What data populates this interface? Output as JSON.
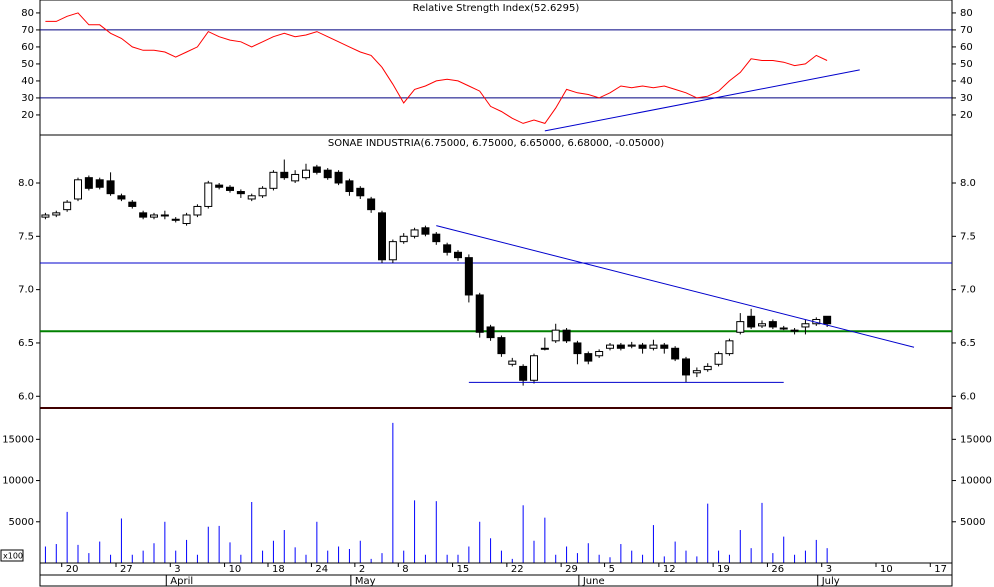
{
  "chart_data": [
    {
      "type": "line",
      "title": "Relative Strength Index(52.6295)",
      "color": "#ff0000",
      "values": [
        75,
        75,
        78,
        80,
        73,
        73,
        68,
        65,
        60,
        58,
        58,
        57,
        54,
        57,
        60,
        69,
        66,
        64,
        63,
        60,
        63,
        66,
        68,
        66,
        67,
        69,
        66,
        63,
        60,
        57,
        55,
        48,
        38,
        27,
        35,
        37,
        40,
        41,
        40,
        37,
        34,
        25,
        22,
        18,
        15,
        17,
        15,
        24,
        35,
        33,
        32,
        30,
        33,
        37,
        36,
        37,
        36,
        37,
        35,
        33,
        30,
        31,
        34,
        40,
        45,
        53,
        52,
        52,
        51,
        49,
        50,
        55,
        52,
        null,
        null,
        null,
        null,
        null,
        null,
        null,
        null,
        null,
        null,
        null
      ],
      "ylim": [
        8.2,
        87.6
      ],
      "yticks": [
        20,
        30,
        40,
        50,
        60,
        70,
        80
      ],
      "hlines": [
        {
          "value": 70,
          "color": "#000080"
        },
        {
          "value": 30,
          "color": "#000080"
        }
      ],
      "lines": [
        {
          "x": [
            46,
            75
          ],
          "y": [
            10.6,
            46.5
          ],
          "color": "#0000cc"
        }
      ]
    },
    {
      "type": "candlestick",
      "title": "SONAE INDUSTRIA(6.75000, 6.75000, 6.65000, 6.68000, -0.05000)",
      "open": [
        7.68,
        7.7,
        7.75,
        7.85,
        8.05,
        8.03,
        8.02,
        7.88,
        7.82,
        7.72,
        7.68,
        7.7,
        7.66,
        7.62,
        7.7,
        7.78,
        7.98,
        7.96,
        7.92,
        7.85,
        7.88,
        7.95,
        8.1,
        8.02,
        8.05,
        8.15,
        8.12,
        8.1,
        8.02,
        7.95,
        7.85,
        7.72,
        7.28,
        7.45,
        7.5,
        7.58,
        7.52,
        7.42,
        7.35,
        7.3,
        6.95,
        6.65,
        6.55,
        6.3,
        6.28,
        6.15,
        6.45,
        6.52,
        6.62,
        6.5,
        6.4,
        6.38,
        6.45,
        6.48,
        6.47,
        6.48,
        6.45,
        6.48,
        6.45,
        6.35,
        6.22,
        6.25,
        6.3,
        6.4,
        6.6,
        6.75,
        6.66,
        6.7,
        6.64,
        6.62,
        6.65,
        6.68,
        6.75,
        null,
        null,
        null,
        null,
        null,
        null,
        null,
        null,
        null,
        null,
        null
      ],
      "high": [
        7.72,
        7.74,
        7.84,
        8.05,
        8.07,
        8.05,
        8.1,
        7.9,
        7.84,
        7.74,
        7.72,
        7.74,
        7.68,
        7.72,
        7.8,
        8.02,
        8.0,
        7.98,
        7.94,
        7.9,
        7.97,
        8.12,
        8.22,
        8.12,
        8.18,
        8.17,
        8.14,
        8.12,
        8.04,
        7.97,
        7.87,
        7.74,
        7.47,
        7.53,
        7.58,
        7.6,
        7.54,
        7.44,
        7.37,
        7.33,
        6.97,
        6.67,
        6.57,
        6.36,
        6.3,
        6.4,
        6.55,
        6.68,
        6.64,
        6.52,
        6.42,
        6.44,
        6.5,
        6.5,
        6.51,
        6.5,
        6.53,
        6.5,
        6.47,
        6.37,
        6.27,
        6.31,
        6.42,
        6.54,
        6.78,
        6.82,
        6.71,
        6.72,
        6.66,
        6.64,
        6.72,
        6.74,
        6.75,
        null,
        null,
        null,
        null,
        null,
        null,
        null,
        null,
        null,
        null,
        null
      ],
      "low": [
        7.66,
        7.68,
        7.73,
        7.83,
        7.93,
        7.94,
        7.88,
        7.83,
        7.76,
        7.66,
        7.66,
        7.66,
        7.63,
        7.6,
        7.68,
        7.76,
        7.94,
        7.91,
        7.86,
        7.83,
        7.86,
        7.93,
        8.03,
        8.0,
        8.03,
        8.08,
        8.03,
        7.98,
        7.88,
        7.85,
        7.72,
        7.25,
        7.25,
        7.43,
        7.48,
        7.5,
        7.42,
        7.32,
        7.27,
        6.88,
        6.55,
        6.52,
        6.37,
        6.28,
        6.1,
        6.12,
        6.43,
        6.5,
        6.5,
        6.3,
        6.3,
        6.36,
        6.43,
        6.43,
        6.45,
        6.4,
        6.43,
        6.4,
        6.33,
        6.13,
        6.18,
        6.23,
        6.28,
        6.38,
        6.58,
        6.63,
        6.64,
        6.63,
        6.62,
        6.58,
        6.58,
        6.66,
        6.65,
        null,
        null,
        null,
        null,
        null,
        null,
        null,
        null,
        null,
        null,
        null
      ],
      "close": [
        7.7,
        7.72,
        7.82,
        8.03,
        7.95,
        7.96,
        7.9,
        7.85,
        7.78,
        7.68,
        7.7,
        7.7,
        7.65,
        7.7,
        7.78,
        8.0,
        7.96,
        7.93,
        7.9,
        7.88,
        7.95,
        8.1,
        8.05,
        8.08,
        8.12,
        8.1,
        8.05,
        8.0,
        7.92,
        7.88,
        7.75,
        7.28,
        7.45,
        7.5,
        7.56,
        7.52,
        7.45,
        7.35,
        7.3,
        6.95,
        6.6,
        6.55,
        6.4,
        6.33,
        6.15,
        6.38,
        6.45,
        6.62,
        6.52,
        6.4,
        6.33,
        6.42,
        6.48,
        6.45,
        6.48,
        6.45,
        6.48,
        6.45,
        6.35,
        6.2,
        6.24,
        6.28,
        6.4,
        6.52,
        6.7,
        6.65,
        6.68,
        6.65,
        6.64,
        6.61,
        6.68,
        6.72,
        6.68,
        null,
        null,
        null,
        null,
        null,
        null,
        null,
        null,
        null,
        null,
        null
      ],
      "ylim": [
        5.89,
        8.45
      ],
      "yticks": [
        {
          "value": 6,
          "label": "6.0"
        },
        {
          "value": 6.5,
          "label": "6.5"
        },
        {
          "value": 7,
          "label": "7.0"
        },
        {
          "value": 7.5,
          "label": "7.5"
        },
        {
          "value": 8,
          "label": "8.0"
        }
      ],
      "hlines": [
        {
          "value": 7.25,
          "color": "#0000cc"
        },
        {
          "value": 6.61,
          "color": "#008000"
        },
        {
          "value": 5.89,
          "color": "#800000"
        }
      ],
      "lines": [
        {
          "x": [
            36,
            80
          ],
          "y": [
            7.6,
            6.46
          ],
          "color": "#0000cc"
        },
        {
          "x": [
            39,
            68
          ],
          "y": [
            6.13,
            6.13
          ],
          "color": "#0000cc"
        }
      ]
    },
    {
      "type": "bar",
      "color": "#0000ff",
      "unit_label": "x100",
      "values": [
        2000,
        2300,
        6200,
        2200,
        1200,
        2600,
        1000,
        5400,
        1000,
        1500,
        2400,
        5000,
        1500,
        2800,
        1000,
        4400,
        4500,
        2500,
        1000,
        7400,
        1500,
        2700,
        4000,
        1900,
        1000,
        5000,
        1500,
        2000,
        1700,
        2700,
        500,
        1200,
        17000,
        1500,
        7600,
        1000,
        7500,
        1000,
        1000,
        2000,
        5000,
        3000,
        1500,
        500,
        7000,
        2700,
        5500,
        1000,
        2000,
        1200,
        2400,
        1000,
        700,
        2300,
        1500,
        1000,
        4600,
        800,
        2600,
        1500,
        800,
        7200,
        1500,
        1000,
        4000,
        1800,
        7300,
        1200,
        3200,
        1000,
        1500,
        2800,
        1800,
        null,
        null,
        null,
        null,
        null,
        null,
        null,
        null,
        null,
        null,
        null
      ],
      "ylim": [
        0,
        18800
      ],
      "yticks": [
        5000,
        10000,
        15000
      ],
      "categories": [
        null,
        null,
        "20",
        null,
        null,
        null,
        null,
        "27",
        null,
        null,
        null,
        null,
        "3",
        null,
        null,
        null,
        null,
        "10",
        null,
        null,
        null,
        "18",
        null,
        null,
        null,
        "24",
        null,
        null,
        null,
        "2",
        null,
        null,
        null,
        "8",
        null,
        null,
        null,
        null,
        "15",
        null,
        null,
        null,
        null,
        "22",
        null,
        null,
        null,
        null,
        "29",
        null,
        null,
        null,
        "5",
        null,
        null,
        null,
        null,
        "12",
        null,
        null,
        null,
        null,
        "19",
        null,
        null,
        null,
        null,
        "26",
        null,
        null,
        null,
        null,
        "3",
        null,
        null,
        null,
        null,
        "10",
        null,
        null,
        null,
        null,
        "17",
        null
      ],
      "months": [
        null,
        null,
        null,
        null,
        null,
        null,
        null,
        null,
        null,
        null,
        null,
        null,
        "April",
        null,
        null,
        null,
        null,
        null,
        null,
        null,
        null,
        null,
        null,
        null,
        null,
        null,
        null,
        null,
        null,
        "May",
        null,
        null,
        null,
        null,
        null,
        null,
        null,
        null,
        null,
        null,
        null,
        null,
        null,
        null,
        null,
        null,
        null,
        null,
        null,
        null,
        "June",
        null,
        null,
        null,
        null,
        null,
        null,
        null,
        null,
        null,
        null,
        null,
        null,
        null,
        null,
        null,
        null,
        null,
        null,
        null,
        null,
        null,
        "July",
        null,
        null,
        null,
        null,
        null,
        null,
        null,
        null,
        null,
        null,
        null
      ]
    }
  ]
}
